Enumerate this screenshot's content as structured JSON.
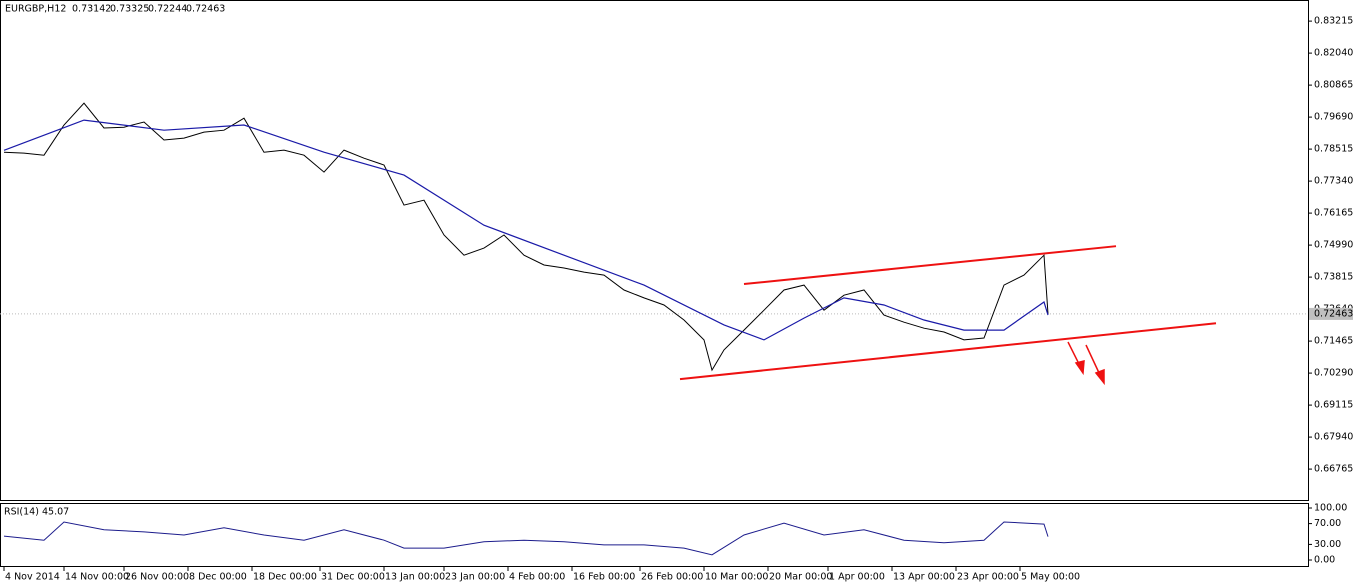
{
  "chart_data": [
    {
      "type": "line",
      "title": "EURGBP,H12",
      "ohlc": [
        0.73142,
        0.73325,
        0.72244,
        0.72463
      ],
      "xlim": [
        -1,
        326
      ],
      "ylim": [
        0.6563,
        0.8388
      ],
      "xticks": [
        {
          "value": 0,
          "label": "4 Nov 2014"
        },
        {
          "value": 15,
          "label": "14 Nov 00:00"
        },
        {
          "value": 30,
          "label": "26 Nov 00:00"
        },
        {
          "value": 46,
          "label": "8 Dec 00:00"
        },
        {
          "value": 62,
          "label": "18 Dec 00:00"
        },
        {
          "value": 79,
          "label": "31 Dec 00:00"
        },
        {
          "value": 95,
          "label": "13 Jan 00:00"
        },
        {
          "value": 110,
          "label": "23 Jan 00:00"
        },
        {
          "value": 126,
          "label": "4 Feb 00:00"
        },
        {
          "value": 142,
          "label": "16 Feb 00:00"
        },
        {
          "value": 159,
          "label": "26 Feb 00:00"
        },
        {
          "value": 175,
          "label": "10 Mar 00:00"
        },
        {
          "value": 191,
          "label": "20 Mar 00:00"
        },
        {
          "value": 206,
          "label": "1 Apr 00:00"
        },
        {
          "value": 222,
          "label": "13 Apr 00:00"
        },
        {
          "value": 238,
          "label": "23 Apr 00:00"
        },
        {
          "value": 254,
          "label": "5 May 00:00"
        }
      ],
      "yticks": [
        0.83215,
        {
          "value": 0.8204,
          "label": "0.82040"
        },
        0.80865,
        {
          "value": 0.7969,
          "label": "0.79690"
        },
        0.78515,
        {
          "value": 0.7734,
          "label": "0.77340"
        },
        0.76165,
        {
          "value": 0.7499,
          "label": "0.74990"
        },
        0.73815,
        {
          "value": 0.7264,
          "label": "0.72640"
        },
        0.71465,
        {
          "value": 0.7029,
          "label": "0.70290"
        },
        0.69115,
        {
          "value": 0.6794,
          "label": "0.67940"
        },
        0.66765
      ],
      "series": [
        {
          "color": "#000000",
          "x": [
            0,
            5,
            10,
            15,
            20,
            25,
            30,
            35,
            40,
            45,
            50,
            55,
            60,
            65,
            70,
            75,
            80,
            85,
            90,
            95,
            100,
            105,
            110,
            115,
            120,
            125,
            130,
            135,
            140,
            145,
            150,
            155,
            160,
            165,
            170,
            175,
            177,
            180,
            185,
            190,
            195,
            200,
            205,
            210,
            215,
            220,
            225,
            230,
            235,
            240,
            245,
            250,
            255,
            260,
            261
          ],
          "values": [
            0.784,
            0.7837,
            0.7829,
            0.794,
            0.802,
            0.7929,
            0.7932,
            0.7951,
            0.7885,
            0.7892,
            0.7914,
            0.7921,
            0.7965,
            0.784,
            0.7848,
            0.7829,
            0.7767,
            0.7848,
            0.7818,
            0.7793,
            0.7646,
            0.7664,
            0.7536,
            0.7462,
            0.7488,
            0.7536,
            0.7462,
            0.7426,
            0.7415,
            0.74,
            0.7389,
            0.7334,
            0.7305,
            0.7279,
            0.7224,
            0.7151,
            0.704,
            0.7114,
            0.7187,
            0.726,
            0.7334,
            0.7352,
            0.726,
            0.7315,
            0.7334,
            0.7242,
            0.7216,
            0.7194,
            0.718,
            0.7151,
            0.7158,
            0.7352,
            0.7389,
            0.7462,
            0.72463
          ]
        },
        {
          "color": "#1a1aa8",
          "x": [
            0,
            20,
            40,
            60,
            80,
            100,
            120,
            140,
            160,
            180,
            190,
            200,
            210,
            220,
            230,
            240,
            250,
            260,
            261
          ],
          "values": [
            0.7847,
            0.7958,
            0.7921,
            0.794,
            0.784,
            0.7756,
            0.7572,
            0.7462,
            0.7352,
            0.7206,
            0.7151,
            0.7231,
            0.7305,
            0.7279,
            0.7224,
            0.7187,
            0.7187,
            0.729,
            0.7242
          ]
        }
      ],
      "trendlines": [
        {
          "color": "#ee1111",
          "x": [
            185,
            278
          ],
          "values": [
            0.7356,
            0.7495
          ]
        },
        {
          "color": "#ee1111",
          "x": [
            169,
            303
          ],
          "values": [
            0.7007,
            0.7212
          ]
        }
      ]
    },
    {
      "type": "line",
      "title": "RSI(14)",
      "last": 45.07,
      "ylim": [
        -11.5,
        109.6
      ],
      "yticks": [
        {
          "value": 100,
          "label": "100.00"
        },
        {
          "value": 70,
          "label": "70.00"
        },
        {
          "value": 30,
          "label": "30.00"
        },
        {
          "value": 0,
          "label": "0.00"
        }
      ],
      "series": [
        {
          "color": "#1c1c8c",
          "x": [
            0,
            10,
            15,
            25,
            35,
            45,
            55,
            65,
            75,
            85,
            95,
            100,
            110,
            120,
            130,
            140,
            150,
            160,
            170,
            177,
            185,
            195,
            205,
            215,
            225,
            235,
            245,
            250,
            260,
            261
          ],
          "values": [
            46,
            38,
            73,
            58,
            54,
            48,
            62,
            48,
            38,
            58,
            38,
            23,
            23,
            35,
            38,
            35,
            29,
            29,
            23,
            10,
            48,
            71,
            48,
            58,
            38,
            33,
            38,
            73,
            69,
            45.07
          ]
        }
      ]
    }
  ]
}
